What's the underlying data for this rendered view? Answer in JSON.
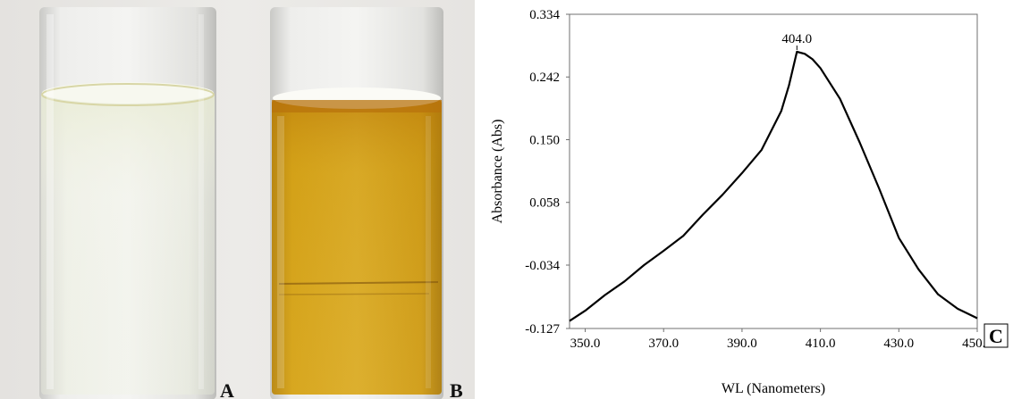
{
  "photo": {
    "label_a": "A",
    "label_b": "B"
  },
  "chart_data": {
    "type": "line",
    "panel_label": "C",
    "title": "",
    "xlabel": "WL (Nanometers)",
    "ylabel": "Absorbance (Abs)",
    "xlim": [
      346,
      450
    ],
    "ylim": [
      -0.127,
      0.334
    ],
    "xticks": [
      350.0,
      370.0,
      390.0,
      410.0,
      430.0,
      450.0
    ],
    "xtick_labels": [
      "350.0",
      "370.0",
      "390.0",
      "410.0",
      "430.0",
      "450.0"
    ],
    "yticks": [
      -0.127,
      -0.034,
      0.058,
      0.15,
      0.242,
      0.334
    ],
    "ytick_labels": [
      "-0.127",
      "-0.034",
      "0.058",
      "0.150",
      "0.242",
      "0.334"
    ],
    "grid": false,
    "peak": {
      "x": 404.0,
      "y": 0.279,
      "label": "404.0"
    },
    "series": [
      {
        "x": [
          346,
          350,
          355,
          360,
          365,
          370,
          375,
          380,
          385,
          390,
          395,
          400,
          402,
          404,
          406,
          408,
          410,
          415,
          420,
          425,
          430,
          435,
          440,
          445,
          450
        ],
        "y": [
          -0.116,
          -0.101,
          -0.078,
          -0.058,
          -0.034,
          -0.013,
          0.009,
          0.04,
          0.069,
          0.101,
          0.135,
          0.192,
          0.23,
          0.279,
          0.276,
          0.268,
          0.255,
          0.21,
          0.146,
          0.078,
          0.006,
          -0.04,
          -0.077,
          -0.098,
          -0.112
        ]
      }
    ]
  }
}
